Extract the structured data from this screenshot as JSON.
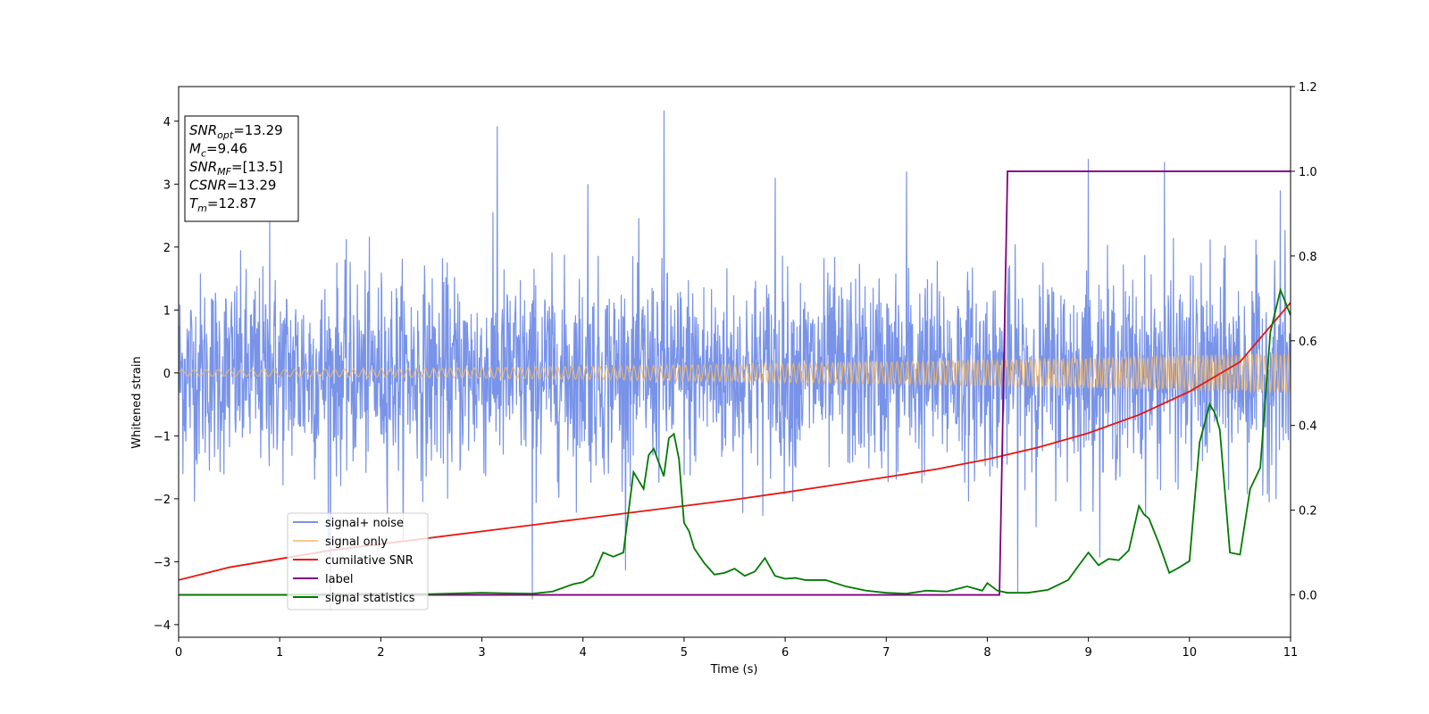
{
  "chart_data": {
    "type": "line",
    "xlabel": "Time (s)",
    "ylabel": "Whitened strain",
    "xlim": [
      0,
      11
    ],
    "ylim_left": [
      -4.2,
      4.55
    ],
    "ylim_right": [
      -0.1,
      1.2
    ],
    "x_ticks": [
      "0",
      "1",
      "2",
      "3",
      "4",
      "5",
      "6",
      "7",
      "8",
      "9",
      "10",
      "11"
    ],
    "x_tick_values": [
      0,
      1,
      2,
      3,
      4,
      5,
      6,
      7,
      8,
      9,
      10,
      11
    ],
    "y_left_ticks": [
      "−4",
      "−3",
      "−2",
      "−1",
      "0",
      "1",
      "2",
      "3",
      "4"
    ],
    "y_left_tick_values": [
      -4,
      -3,
      -2,
      -1,
      0,
      1,
      2,
      3,
      4
    ],
    "y_right_ticks": [
      "0.0",
      "0.2",
      "0.4",
      "0.6",
      "0.8",
      "1.0",
      "1.2"
    ],
    "y_right_tick_values": [
      0,
      0.2,
      0.4,
      0.6,
      0.8,
      1.0,
      1.2
    ],
    "legend_position": "lower-left",
    "colors": {
      "noise": "#4b6fe0",
      "signal": "#f5b866",
      "csnr": "#e8150f",
      "label": "#800080",
      "stat": "#007a00"
    },
    "series": [
      {
        "name": "signal+ noise",
        "axis": "left",
        "description_values": "dense gaussian noise band, roughly ±2 with spikes",
        "spikes": [
          {
            "x": 0.9,
            "y": 2.5
          },
          {
            "x": 1.5,
            "y": -3.77
          },
          {
            "x": 3.15,
            "y": 3.92
          },
          {
            "x": 3.5,
            "y": -3.6
          },
          {
            "x": 4.05,
            "y": 3.0
          },
          {
            "x": 4.8,
            "y": 4.17
          },
          {
            "x": 8.3,
            "y": -3.5
          },
          {
            "x": 9.0,
            "y": 3.4
          },
          {
            "x": 9.75,
            "y": 3.35
          },
          {
            "x": 5.9,
            "y": 3.1
          },
          {
            "x": 7.2,
            "y": 3.2
          },
          {
            "x": 10.9,
            "y": 2.9
          }
        ]
      },
      {
        "name": "signal only",
        "axis": "left",
        "amplitude_start": 0.05,
        "amplitude_end": 0.32
      },
      {
        "name": "cumilative SNR",
        "axis": "right",
        "x": [
          0,
          0.5,
          1,
          1.5,
          2,
          2.5,
          3,
          3.5,
          4,
          4.5,
          5,
          5.5,
          6,
          6.5,
          7,
          7.5,
          8,
          8.5,
          9,
          9.5,
          10,
          10.5,
          11
        ],
        "y": [
          0.035,
          0.065,
          0.085,
          0.105,
          0.12,
          0.135,
          0.15,
          0.165,
          0.18,
          0.195,
          0.21,
          0.225,
          0.242,
          0.26,
          0.278,
          0.297,
          0.32,
          0.348,
          0.382,
          0.425,
          0.48,
          0.55,
          0.69
        ]
      },
      {
        "name": "label",
        "axis": "right",
        "x": [
          0,
          8.12,
          8.2,
          11
        ],
        "y": [
          0,
          0,
          1,
          1
        ]
      },
      {
        "name": "signal statistics",
        "axis": "right",
        "x": [
          0,
          0.5,
          1,
          1.5,
          2,
          2.5,
          3,
          3.2,
          3.5,
          3.7,
          3.9,
          4.0,
          4.1,
          4.2,
          4.3,
          4.4,
          4.5,
          4.6,
          4.65,
          4.7,
          4.8,
          4.85,
          4.9,
          4.95,
          5.0,
          5.05,
          5.1,
          5.2,
          5.3,
          5.4,
          5.5,
          5.6,
          5.7,
          5.8,
          5.9,
          6.0,
          6.1,
          6.2,
          6.4,
          6.6,
          6.8,
          7.0,
          7.2,
          7.4,
          7.6,
          7.8,
          7.95,
          8.0,
          8.1,
          8.2,
          8.4,
          8.6,
          8.8,
          8.9,
          9.0,
          9.1,
          9.2,
          9.3,
          9.4,
          9.5,
          9.55,
          9.6,
          9.7,
          9.8,
          9.9,
          10.0,
          10.1,
          10.2,
          10.25,
          10.3,
          10.4,
          10.5,
          10.6,
          10.7,
          10.8,
          10.9,
          11.0
        ],
        "y": [
          0.0,
          0.0,
          0.0,
          0.002,
          0.003,
          0.002,
          0.005,
          0.004,
          0.003,
          0.008,
          0.025,
          0.03,
          0.045,
          0.1,
          0.09,
          0.1,
          0.29,
          0.25,
          0.33,
          0.345,
          0.28,
          0.37,
          0.38,
          0.32,
          0.17,
          0.15,
          0.11,
          0.075,
          0.048,
          0.052,
          0.062,
          0.045,
          0.055,
          0.087,
          0.045,
          0.038,
          0.04,
          0.035,
          0.035,
          0.02,
          0.01,
          0.005,
          0.003,
          0.01,
          0.008,
          0.02,
          0.01,
          0.028,
          0.01,
          0.005,
          0.005,
          0.012,
          0.035,
          0.068,
          0.1,
          0.07,
          0.085,
          0.082,
          0.105,
          0.21,
          0.19,
          0.18,
          0.12,
          0.052,
          0.065,
          0.08,
          0.36,
          0.45,
          0.43,
          0.39,
          0.1,
          0.095,
          0.25,
          0.3,
          0.62,
          0.72,
          0.66
        ]
      }
    ],
    "annotation": {
      "lines": [
        {
          "base": "SNR",
          "sub": "opt",
          "value": "=13.29"
        },
        {
          "base": "M",
          "sub": "c",
          "value": "=9.46"
        },
        {
          "base": "SNR",
          "sub": "MF",
          "value": "=[13.5]"
        },
        {
          "base": "CSNR",
          "sub": "",
          "value": "=13.29"
        },
        {
          "base": "T",
          "sub": "m",
          "value": "=12.87"
        }
      ]
    }
  }
}
